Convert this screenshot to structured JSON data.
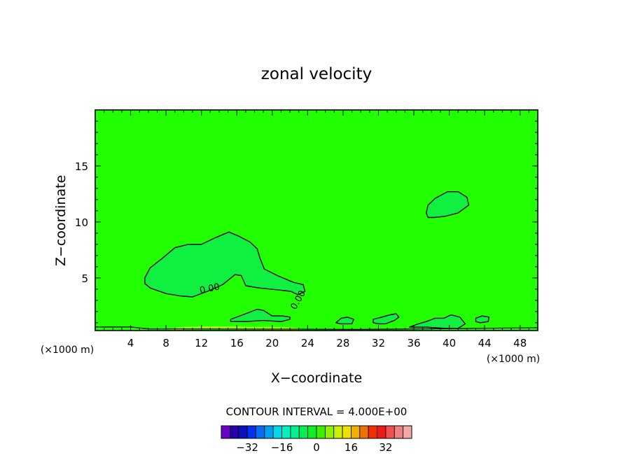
{
  "chart_data": {
    "type": "contour",
    "title": "zonal velocity",
    "xlabel": "X−coordinate",
    "ylabel": "Z−coordinate",
    "x_unit_left": "(×1000 m)",
    "x_unit_right": "(×1000 m)",
    "x_range": [
      0,
      50
    ],
    "y_range": [
      0.3,
      20
    ],
    "x_ticks": [
      4,
      8,
      12,
      16,
      20,
      24,
      28,
      32,
      36,
      40,
      44,
      48
    ],
    "y_ticks": [
      5,
      10,
      15
    ],
    "contour_interval_text": "CONTOUR INTERVAL = 4.000E+00",
    "contour_labels": [
      {
        "text": "0.00",
        "x": 13,
        "z": 3.8,
        "angle": -12
      },
      {
        "text": "0.00",
        "x": 23.2,
        "z": 2.9,
        "angle": -60
      }
    ],
    "background_color": "#22ff00",
    "contours": [
      {
        "name": "region-west",
        "fill": "#10f040",
        "points": [
          [
            5.6,
            5.0
          ],
          [
            6.2,
            5.9
          ],
          [
            7.5,
            6.7
          ],
          [
            9,
            7.7
          ],
          [
            10.5,
            8.0
          ],
          [
            12,
            8.0
          ],
          [
            13.6,
            8.6
          ],
          [
            15.1,
            9.1
          ],
          [
            16.3,
            8.7
          ],
          [
            17.5,
            8.2
          ],
          [
            18.3,
            7.6
          ],
          [
            18.6,
            6.8
          ],
          [
            19.1,
            5.8
          ],
          [
            20.6,
            5.2
          ],
          [
            22.4,
            4.6
          ],
          [
            23.5,
            4.4
          ],
          [
            23.7,
            3.8
          ],
          [
            22.9,
            3.5
          ],
          [
            22.1,
            3.8
          ],
          [
            21.0,
            3.9
          ],
          [
            18.5,
            4.1
          ],
          [
            17.0,
            4.3
          ],
          [
            16.5,
            5.2
          ],
          [
            15.8,
            5.3
          ],
          [
            14.4,
            4.4
          ],
          [
            13.0,
            3.9
          ],
          [
            11.0,
            3.3
          ],
          [
            9.5,
            3.4
          ],
          [
            8.0,
            3.6
          ],
          [
            6.2,
            4.1
          ],
          [
            5.6,
            4.5
          ]
        ]
      },
      {
        "name": "region-east-upper",
        "fill": "#10f040",
        "points": [
          [
            37.4,
            10.8
          ],
          [
            37.6,
            11.5
          ],
          [
            38.4,
            12.1
          ],
          [
            39.8,
            12.7
          ],
          [
            41.0,
            12.7
          ],
          [
            42.0,
            12.2
          ],
          [
            42.2,
            11.5
          ],
          [
            41.0,
            10.8
          ],
          [
            39.5,
            10.5
          ],
          [
            38.3,
            10.4
          ],
          [
            37.6,
            10.4
          ]
        ]
      },
      {
        "name": "region-low-ridge",
        "fill": "#10f040",
        "points": [
          [
            15.3,
            1.3
          ],
          [
            17.0,
            1.8
          ],
          [
            18.3,
            2.2
          ],
          [
            19.0,
            2.1
          ],
          [
            20.0,
            1.6
          ],
          [
            21.2,
            1.6
          ],
          [
            22.0,
            1.5
          ],
          [
            22.0,
            1.3
          ],
          [
            21.0,
            1.1
          ],
          [
            19.0,
            1.2
          ],
          [
            17.0,
            1.1
          ],
          [
            15.3,
            1.1
          ]
        ]
      },
      {
        "name": "region-small-28",
        "fill": "#10f040",
        "points": [
          [
            27.2,
            1.0
          ],
          [
            27.8,
            1.4
          ],
          [
            28.5,
            1.5
          ],
          [
            29.2,
            1.3
          ],
          [
            29.0,
            0.9
          ],
          [
            27.7,
            0.9
          ]
        ]
      },
      {
        "name": "region-ridge-32",
        "fill": "#10f040",
        "points": [
          [
            31.4,
            1.3
          ],
          [
            32.4,
            1.5
          ],
          [
            33.3,
            1.7
          ],
          [
            34.0,
            1.8
          ],
          [
            34.3,
            1.5
          ],
          [
            33.8,
            1.2
          ],
          [
            32.8,
            0.9
          ],
          [
            32.0,
            0.9
          ],
          [
            31.4,
            1.0
          ]
        ]
      },
      {
        "name": "region-ridge-38",
        "fill": "#10f040",
        "points": [
          [
            35.5,
            0.6
          ],
          [
            36.5,
            0.9
          ],
          [
            37.4,
            1.1
          ],
          [
            38.4,
            1.4
          ],
          [
            39.4,
            1.4
          ],
          [
            40.2,
            1.7
          ],
          [
            41.2,
            1.5
          ],
          [
            41.8,
            0.9
          ],
          [
            41.0,
            0.5
          ],
          [
            39.5,
            0.5
          ],
          [
            37.5,
            0.6
          ]
        ]
      },
      {
        "name": "region-small-44",
        "fill": "#10f040",
        "points": [
          [
            43.0,
            1.4
          ],
          [
            43.7,
            1.6
          ],
          [
            44.5,
            1.5
          ],
          [
            44.4,
            1.1
          ],
          [
            43.5,
            1.0
          ],
          [
            43.0,
            1.1
          ]
        ]
      },
      {
        "name": "region-ground-band",
        "fill": "#9cf700",
        "points": [
          [
            8.5,
            0.35
          ],
          [
            10,
            0.5
          ],
          [
            12,
            0.55
          ],
          [
            15,
            0.55
          ],
          [
            18,
            0.5
          ],
          [
            20,
            0.5
          ],
          [
            22,
            0.45
          ],
          [
            23.2,
            0.35
          ]
        ]
      }
    ],
    "colorbar": {
      "ticks": [
        -32,
        -16,
        0,
        16,
        32
      ],
      "tick_labels": [
        "−32",
        "−16",
        "0",
        "16",
        "32"
      ],
      "colors": [
        "#6a00c8",
        "#2a00a8",
        "#0a10c0",
        "#0030f0",
        "#0070f0",
        "#00a0f0",
        "#00d8f0",
        "#00f0c0",
        "#00f090",
        "#00f050",
        "#10f020",
        "#40f000",
        "#90f000",
        "#c8f000",
        "#f0e000",
        "#f0b000",
        "#f07000",
        "#f03000",
        "#f01818",
        "#f05050",
        "#f08080",
        "#f0a8a8"
      ]
    }
  }
}
